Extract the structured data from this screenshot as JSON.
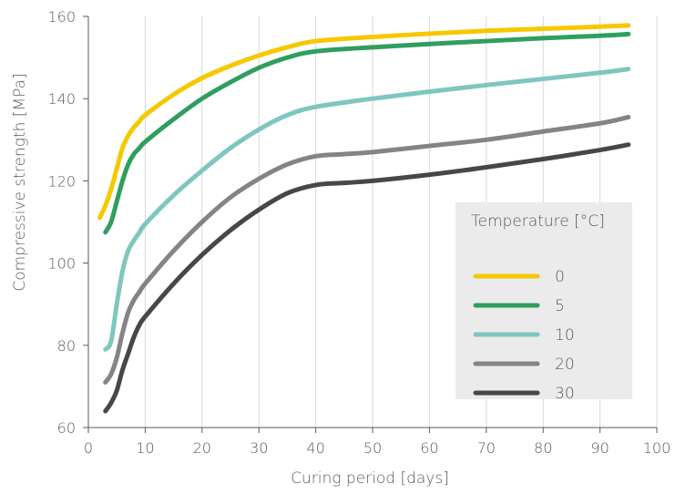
{
  "chart_data": {
    "type": "line",
    "xlabel": "Curing period [days]",
    "ylabel": "Compressive strength [MPa]",
    "xlim": [
      0,
      100
    ],
    "ylim": [
      60,
      160
    ],
    "xticks": [
      0,
      10,
      20,
      30,
      40,
      50,
      60,
      70,
      80,
      90,
      100
    ],
    "yticks": [
      60,
      80,
      100,
      120,
      140,
      160
    ],
    "grid": "vertical",
    "legend": {
      "title": "Temperature [°C]",
      "position": "right-middle"
    },
    "series": [
      {
        "name": "0",
        "color": "#f5c800",
        "points": [
          [
            2,
            111
          ],
          [
            3,
            114
          ],
          [
            4,
            118
          ],
          [
            5,
            123
          ],
          [
            6,
            128
          ],
          [
            7,
            131
          ],
          [
            8,
            133
          ],
          [
            9,
            134.5
          ],
          [
            10,
            136
          ],
          [
            15,
            141
          ],
          [
            20,
            145
          ],
          [
            25,
            148
          ],
          [
            30,
            150.5
          ],
          [
            35,
            152.5
          ],
          [
            40,
            154
          ],
          [
            50,
            155
          ],
          [
            60,
            155.8
          ],
          [
            70,
            156.5
          ],
          [
            80,
            157
          ],
          [
            90,
            157.5
          ],
          [
            95,
            157.8
          ]
        ]
      },
      {
        "name": "5",
        "color": "#2f9e5e",
        "points": [
          [
            3,
            107.5
          ],
          [
            4,
            110
          ],
          [
            5,
            115
          ],
          [
            6,
            120
          ],
          [
            7,
            124
          ],
          [
            8,
            126.5
          ],
          [
            9,
            128
          ],
          [
            10,
            129.5
          ],
          [
            15,
            135
          ],
          [
            20,
            140
          ],
          [
            25,
            144
          ],
          [
            30,
            147.5
          ],
          [
            35,
            150
          ],
          [
            40,
            151.5
          ],
          [
            50,
            152.5
          ],
          [
            60,
            153.3
          ],
          [
            70,
            154
          ],
          [
            80,
            154.7
          ],
          [
            90,
            155.3
          ],
          [
            95,
            155.7
          ]
        ]
      },
      {
        "name": "10",
        "color": "#7fc6c0",
        "points": [
          [
            3,
            79
          ],
          [
            4,
            81
          ],
          [
            5,
            90
          ],
          [
            6,
            98
          ],
          [
            7,
            103
          ],
          [
            8,
            105.5
          ],
          [
            9,
            107.5
          ],
          [
            10,
            109.5
          ],
          [
            15,
            116.5
          ],
          [
            20,
            122.5
          ],
          [
            25,
            128
          ],
          [
            30,
            132.5
          ],
          [
            35,
            136
          ],
          [
            40,
            138
          ],
          [
            50,
            140
          ],
          [
            60,
            141.7
          ],
          [
            70,
            143.3
          ],
          [
            80,
            144.8
          ],
          [
            90,
            146.3
          ],
          [
            95,
            147.2
          ]
        ]
      },
      {
        "name": "20",
        "color": "#848484",
        "points": [
          [
            3,
            71
          ],
          [
            4,
            73
          ],
          [
            5,
            77
          ],
          [
            6,
            83
          ],
          [
            7,
            88
          ],
          [
            8,
            91
          ],
          [
            9,
            93
          ],
          [
            10,
            95
          ],
          [
            15,
            103
          ],
          [
            20,
            110
          ],
          [
            25,
            116
          ],
          [
            30,
            120.5
          ],
          [
            35,
            124
          ],
          [
            40,
            126
          ],
          [
            45,
            126.5
          ],
          [
            50,
            127
          ],
          [
            60,
            128.5
          ],
          [
            70,
            130
          ],
          [
            80,
            132
          ],
          [
            90,
            134
          ],
          [
            95,
            135.5
          ]
        ]
      },
      {
        "name": "30",
        "color": "#474747",
        "points": [
          [
            3,
            64
          ],
          [
            4,
            66
          ],
          [
            5,
            69
          ],
          [
            6,
            74
          ],
          [
            7,
            78
          ],
          [
            8,
            82
          ],
          [
            9,
            85
          ],
          [
            10,
            87
          ],
          [
            15,
            95
          ],
          [
            20,
            102
          ],
          [
            25,
            108
          ],
          [
            30,
            113
          ],
          [
            35,
            117
          ],
          [
            40,
            119
          ],
          [
            45,
            119.5
          ],
          [
            50,
            120
          ],
          [
            60,
            121.5
          ],
          [
            70,
            123.3
          ],
          [
            80,
            125.3
          ],
          [
            90,
            127.5
          ],
          [
            95,
            128.8
          ]
        ]
      }
    ]
  },
  "style": {
    "axis_color": "#5a5a5a",
    "grid_color": "#d7d7d7",
    "legend_bg": "#ebebeb",
    "text_color": "#5a5a5a"
  }
}
